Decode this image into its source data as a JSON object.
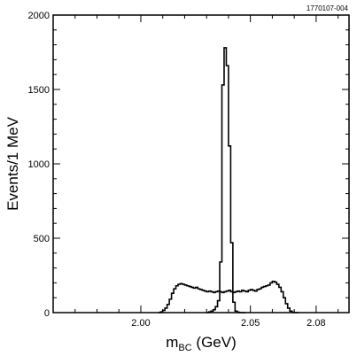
{
  "figure_id": "1770107-004",
  "chart_data": {
    "type": "histogram",
    "xlabel_main": "m",
    "xlabel_sub": "BC",
    "xlabel_unit": " (GeV)",
    "ylabel": "Events/1 MeV",
    "xlim": [
      1.96,
      2.095
    ],
    "ylim": [
      0,
      2000
    ],
    "x_ticks": [
      {
        "value": 2.0,
        "label": "2.00"
      },
      {
        "value": 2.05,
        "label": "2.05"
      },
      {
        "value": 2.08,
        "label": "2.08"
      }
    ],
    "x_minor_ticks": [
      1.96,
      1.97,
      1.98,
      1.99,
      2.01,
      2.02,
      2.03,
      2.04,
      2.06,
      2.07,
      2.09
    ],
    "y_ticks": [
      {
        "value": 0,
        "label": "0"
      },
      {
        "value": 500,
        "label": "500"
      },
      {
        "value": 1000,
        "label": "1000"
      },
      {
        "value": 1500,
        "label": "1500"
      },
      {
        "value": 2000,
        "label": "2000"
      }
    ],
    "series": [
      {
        "bin_width": 0.001,
        "bin_starts": [
          2.03,
          2.031,
          2.032,
          2.033,
          2.034,
          2.035,
          2.036,
          2.037,
          2.038,
          2.039,
          2.04,
          2.041,
          2.042,
          2.043,
          2.044,
          2.045,
          2.046,
          2.047
        ],
        "counts": [
          0,
          5,
          10,
          20,
          40,
          80,
          340,
          1530,
          1780,
          1660,
          1120,
          470,
          70,
          10,
          3,
          0,
          0,
          0
        ]
      },
      {
        "bin_width": 0.001,
        "bin_starts": [
          2.008,
          2.009,
          2.01,
          2.011,
          2.012,
          2.013,
          2.014,
          2.015,
          2.016,
          2.017,
          2.018,
          2.019,
          2.02,
          2.021,
          2.022,
          2.023,
          2.024,
          2.025,
          2.026,
          2.027,
          2.028,
          2.029,
          2.03,
          2.031,
          2.032,
          2.033,
          2.034,
          2.035,
          2.036,
          2.037,
          2.038,
          2.039,
          2.04,
          2.041,
          2.042,
          2.043,
          2.044,
          2.045,
          2.046,
          2.047,
          2.048,
          2.049,
          2.05,
          2.051,
          2.052,
          2.053,
          2.054,
          2.055,
          2.056,
          2.057,
          2.058,
          2.059,
          2.06,
          2.061,
          2.062,
          2.063,
          2.064,
          2.065,
          2.066,
          2.067,
          2.068,
          2.069,
          2.07,
          2.071
        ],
        "counts": [
          0,
          5,
          15,
          30,
          55,
          90,
          130,
          160,
          180,
          190,
          195,
          190,
          185,
          180,
          175,
          170,
          165,
          170,
          160,
          155,
          150,
          145,
          140,
          145,
          140,
          135,
          140,
          145,
          140,
          135,
          140,
          145,
          150,
          140,
          135,
          140,
          145,
          140,
          150,
          145,
          140,
          150,
          155,
          150,
          145,
          155,
          160,
          170,
          175,
          180,
          185,
          200,
          210,
          205,
          190,
          170,
          140,
          100,
          60,
          30,
          10,
          3,
          0,
          0
        ]
      }
    ]
  }
}
